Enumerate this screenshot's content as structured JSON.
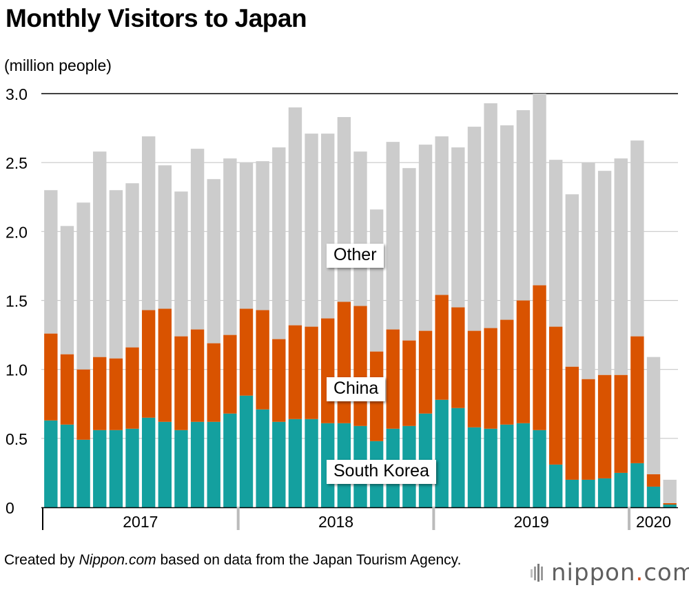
{
  "header": {
    "title": "Monthly Visitors to Japan",
    "unit": "(million people)"
  },
  "footer": {
    "prefix": "Created by ",
    "source_name": "Nippon.com",
    "suffix": " based on data from the Japan Tourism Agency."
  },
  "logo": {
    "brand": "nippon",
    "dot": ".",
    "domain": "com"
  },
  "colors": {
    "south_korea": "#14a09f",
    "china": "#d95300",
    "other": "#cccccc",
    "grid": "#c8c8c8"
  },
  "chart_data": {
    "type": "bar",
    "stacked": true,
    "title": "Monthly Visitors to Japan",
    "ylabel": "(million people)",
    "xlabel": "",
    "ylim": [
      0,
      3.0
    ],
    "yticks": [
      "0",
      "0.5",
      "1.0",
      "1.5",
      "2.0",
      "2.5",
      "3.0"
    ],
    "years": [
      {
        "label": "2017",
        "months": 12
      },
      {
        "label": "2018",
        "months": 12
      },
      {
        "label": "2019",
        "months": 12
      },
      {
        "label": "2020",
        "months": 3
      }
    ],
    "categories": [
      "2017-01",
      "2017-02",
      "2017-03",
      "2017-04",
      "2017-05",
      "2017-06",
      "2017-07",
      "2017-08",
      "2017-09",
      "2017-10",
      "2017-11",
      "2017-12",
      "2018-01",
      "2018-02",
      "2018-03",
      "2018-04",
      "2018-05",
      "2018-06",
      "2018-07",
      "2018-08",
      "2018-09",
      "2018-10",
      "2018-11",
      "2018-12",
      "2019-01",
      "2019-02",
      "2019-03",
      "2019-04",
      "2019-05",
      "2019-06",
      "2019-07",
      "2019-08",
      "2019-09",
      "2019-10",
      "2019-11",
      "2019-12",
      "2020-01",
      "2020-02",
      "2020-03"
    ],
    "series": [
      {
        "name": "South Korea",
        "values": [
          0.63,
          0.6,
          0.49,
          0.56,
          0.56,
          0.57,
          0.65,
          0.62,
          0.56,
          0.62,
          0.62,
          0.68,
          0.81,
          0.71,
          0.62,
          0.64,
          0.64,
          0.61,
          0.61,
          0.59,
          0.48,
          0.57,
          0.59,
          0.68,
          0.78,
          0.72,
          0.58,
          0.57,
          0.6,
          0.61,
          0.56,
          0.31,
          0.2,
          0.2,
          0.21,
          0.25,
          0.32,
          0.15,
          0.02
        ]
      },
      {
        "name": "China",
        "values": [
          0.63,
          0.51,
          0.51,
          0.53,
          0.52,
          0.59,
          0.78,
          0.82,
          0.68,
          0.67,
          0.57,
          0.57,
          0.63,
          0.72,
          0.6,
          0.68,
          0.67,
          0.76,
          0.88,
          0.87,
          0.65,
          0.72,
          0.62,
          0.6,
          0.76,
          0.73,
          0.7,
          0.73,
          0.76,
          0.89,
          1.05,
          1.0,
          0.82,
          0.73,
          0.75,
          0.71,
          0.92,
          0.09,
          0.01
        ]
      },
      {
        "name": "Other",
        "values": [
          1.04,
          0.93,
          1.21,
          1.49,
          1.22,
          1.19,
          1.26,
          1.04,
          1.05,
          1.31,
          1.19,
          1.28,
          1.06,
          1.08,
          1.39,
          1.58,
          1.4,
          1.34,
          1.34,
          1.12,
          1.03,
          1.36,
          1.25,
          1.35,
          1.15,
          1.16,
          1.48,
          1.63,
          1.41,
          1.38,
          1.39,
          1.21,
          1.25,
          1.57,
          1.48,
          1.57,
          1.42,
          0.85,
          0.17
        ]
      }
    ],
    "series_labels": [
      {
        "series": "Other",
        "text": "Other"
      },
      {
        "series": "China",
        "text": "China"
      },
      {
        "series": "South Korea",
        "text": "South Korea"
      }
    ]
  }
}
